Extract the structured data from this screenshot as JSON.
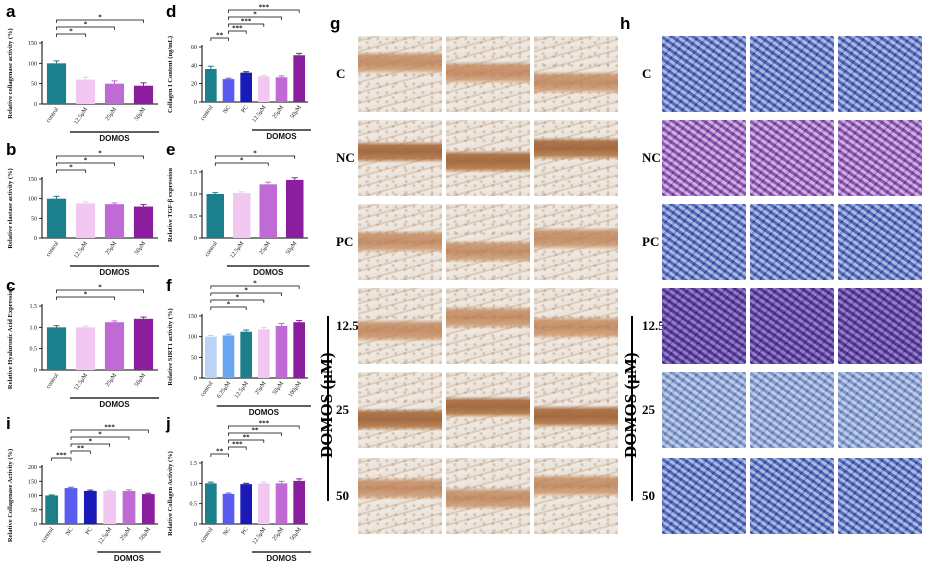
{
  "panels": {
    "a": {
      "letter": "a"
    },
    "b": {
      "letter": "b"
    },
    "c": {
      "letter": "c"
    },
    "d": {
      "letter": "d"
    },
    "e": {
      "letter": "e"
    },
    "f": {
      "letter": "f"
    },
    "i": {
      "letter": "i"
    },
    "j": {
      "letter": "j"
    },
    "g": {
      "letter": "g"
    },
    "h": {
      "letter": "h"
    }
  },
  "group_label": "DOMOS",
  "image_rows": [
    "C",
    "NC",
    "PC",
    "12.5",
    "25",
    "50"
  ],
  "vertical_label": "DOMOS (μM)",
  "colors": {
    "teal": "#1b7f8c",
    "blue": "#5a5cf0",
    "navy": "#1a1ab8",
    "pink": "#f2c8f2",
    "orchid": "#c06ad6",
    "purple": "#8a1e9e",
    "lightblue": "#b9d4f5",
    "skyblue": "#6aa6f0"
  },
  "chart_data": [
    {
      "id": "a",
      "type": "bar",
      "ylabel": "Relative collagenase activity (%)",
      "ylim": [
        0,
        150
      ],
      "yticks": [
        0,
        50,
        100,
        150
      ],
      "categories": [
        "control",
        "12.5μM",
        "25μM",
        "50μM"
      ],
      "values": [
        100,
        60,
        50,
        45
      ],
      "errors": [
        6,
        6,
        7,
        7
      ],
      "colors": [
        "teal",
        "pink",
        "orchid",
        "purple"
      ],
      "sig": [
        {
          "from": 0,
          "to": 3,
          "label": "*"
        },
        {
          "from": 0,
          "to": 2,
          "label": "*"
        },
        {
          "from": 0,
          "to": 1,
          "label": "*"
        }
      ],
      "group": [
        1,
        3
      ]
    },
    {
      "id": "b",
      "type": "bar",
      "ylabel": "Relative elastase activity (%)",
      "ylim": [
        0,
        150
      ],
      "yticks": [
        0,
        50,
        100,
        150
      ],
      "categories": [
        "control",
        "12.5μM",
        "25μM",
        "50μM"
      ],
      "values": [
        100,
        88,
        86,
        80
      ],
      "errors": [
        6,
        4,
        3,
        5
      ],
      "colors": [
        "teal",
        "pink",
        "orchid",
        "purple"
      ],
      "sig": [
        {
          "from": 0,
          "to": 3,
          "label": "*"
        },
        {
          "from": 0,
          "to": 2,
          "label": "*"
        },
        {
          "from": 0,
          "to": 1,
          "label": "*"
        }
      ],
      "group": [
        1,
        3
      ]
    },
    {
      "id": "c",
      "type": "bar",
      "ylabel": "Relative Hyaluronic Acid Expression",
      "ylim": [
        0,
        1.5
      ],
      "yticks": [
        0,
        0.5,
        1.0,
        1.5
      ],
      "categories": [
        "control",
        "12.5μM",
        "25μM",
        "50μM"
      ],
      "values": [
        1.0,
        1.0,
        1.12,
        1.2
      ],
      "errors": [
        0.04,
        0.03,
        0.03,
        0.04
      ],
      "colors": [
        "teal",
        "pink",
        "orchid",
        "purple"
      ],
      "sig": [
        {
          "from": 0,
          "to": 3,
          "label": "*"
        },
        {
          "from": 0,
          "to": 2,
          "label": "*"
        }
      ],
      "group": [
        1,
        3
      ]
    },
    {
      "id": "d",
      "type": "bar",
      "ylabel": "Collagen I Content (ng/mL)",
      "ylim": [
        0,
        60
      ],
      "yticks": [
        0,
        20,
        40,
        60
      ],
      "categories": [
        "control",
        "NC",
        "PC",
        "12.5μM",
        "25μM",
        "50μM"
      ],
      "values": [
        36,
        25,
        32,
        28,
        27,
        51
      ],
      "errors": [
        3,
        1,
        1,
        1,
        1.5,
        2
      ],
      "colors": [
        "teal",
        "blue",
        "navy",
        "pink",
        "orchid",
        "purple"
      ],
      "sig": [
        {
          "from": 1,
          "to": 5,
          "label": "***"
        },
        {
          "from": 1,
          "to": 4,
          "label": "*"
        },
        {
          "from": 1,
          "to": 3,
          "label": "***"
        },
        {
          "from": 1,
          "to": 2,
          "label": "***"
        },
        {
          "from": 0,
          "to": 1,
          "label": "**"
        }
      ],
      "group": [
        3,
        5
      ]
    },
    {
      "id": "e",
      "type": "bar",
      "ylabel": "Relative TGF-β expression",
      "ylim": [
        0,
        1.5
      ],
      "yticks": [
        0,
        0.5,
        1.0,
        1.5
      ],
      "categories": [
        "control",
        "12.5μM",
        "25μM",
        "50μM"
      ],
      "values": [
        1.0,
        1.02,
        1.22,
        1.32
      ],
      "errors": [
        0.03,
        0.03,
        0.05,
        0.05
      ],
      "colors": [
        "teal",
        "pink",
        "orchid",
        "purple"
      ],
      "sig": [
        {
          "from": 0,
          "to": 3,
          "label": "*"
        },
        {
          "from": 0,
          "to": 2,
          "label": "*"
        }
      ],
      "group": [
        1,
        3
      ]
    },
    {
      "id": "f",
      "type": "bar",
      "ylabel": "Relative SIRT1 activity (%)",
      "ylim": [
        0,
        150
      ],
      "yticks": [
        0,
        50,
        100,
        150
      ],
      "categories": [
        "control",
        "6.25μM",
        "12.5μM",
        "25μM",
        "50μM",
        "100μM"
      ],
      "values": [
        100,
        103,
        112,
        118,
        126,
        135
      ],
      "errors": [
        3,
        3,
        4,
        4,
        6,
        4
      ],
      "colors": [
        "lightblue",
        "skyblue",
        "teal",
        "pink",
        "orchid",
        "purple"
      ],
      "sig": [
        {
          "from": 0,
          "to": 5,
          "label": "*"
        },
        {
          "from": 0,
          "to": 4,
          "label": "*"
        },
        {
          "from": 0,
          "to": 3,
          "label": "*"
        },
        {
          "from": 0,
          "to": 2,
          "label": "*"
        }
      ],
      "group": [
        1,
        5
      ]
    },
    {
      "id": "i",
      "type": "bar",
      "ylabel": "Relative Collagenase Activity (%)",
      "ylim": [
        0,
        200
      ],
      "yticks": [
        0,
        50,
        100,
        150,
        200
      ],
      "categories": [
        "control",
        "NC",
        "PC",
        "12.5μM",
        "25μM",
        "50μM"
      ],
      "values": [
        100,
        126,
        116,
        116,
        116,
        105
      ],
      "errors": [
        2,
        3,
        3,
        3,
        4,
        3
      ],
      "colors": [
        "teal",
        "blue",
        "navy",
        "pink",
        "orchid",
        "purple"
      ],
      "sig": [
        {
          "from": 1,
          "to": 5,
          "label": "***"
        },
        {
          "from": 1,
          "to": 4,
          "label": "*"
        },
        {
          "from": 1,
          "to": 3,
          "label": "*"
        },
        {
          "from": 1,
          "to": 2,
          "label": "**"
        },
        {
          "from": 0,
          "to": 1,
          "label": "***"
        }
      ],
      "group": [
        3,
        5
      ]
    },
    {
      "id": "j",
      "type": "bar",
      "ylabel": "Relative Collagen Activity (%)",
      "ylim": [
        0,
        1.5
      ],
      "yticks": [
        0,
        0.5,
        1.0,
        1.5
      ],
      "categories": [
        "control",
        "NC",
        "PC",
        "12.5μM",
        "25μM",
        "50μM"
      ],
      "values": [
        1.0,
        0.74,
        0.98,
        1.0,
        1.0,
        1.06
      ],
      "errors": [
        0.03,
        0.02,
        0.02,
        0.04,
        0.05,
        0.05
      ],
      "colors": [
        "teal",
        "blue",
        "navy",
        "pink",
        "orchid",
        "purple"
      ],
      "sig": [
        {
          "from": 1,
          "to": 5,
          "label": "***"
        },
        {
          "from": 1,
          "to": 4,
          "label": "**"
        },
        {
          "from": 1,
          "to": 3,
          "label": "**"
        },
        {
          "from": 1,
          "to": 2,
          "label": "***"
        },
        {
          "from": 0,
          "to": 1,
          "label": "**"
        }
      ],
      "group": [
        3,
        5
      ]
    }
  ]
}
